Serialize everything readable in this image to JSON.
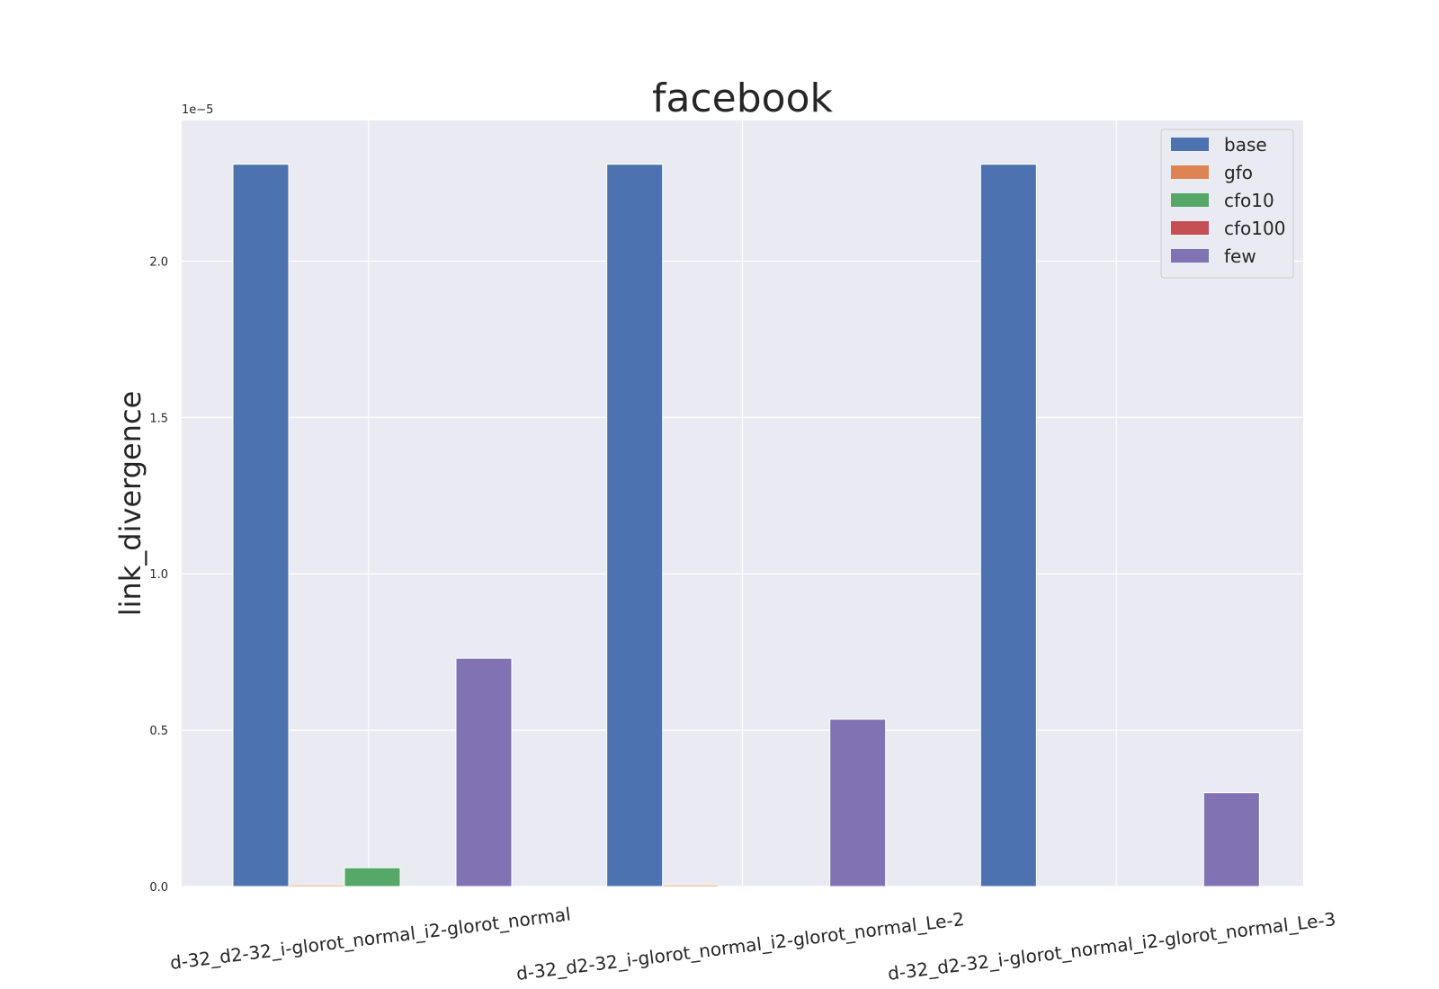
{
  "chart_data": {
    "type": "bar",
    "title": "facebook",
    "xlabel": "",
    "ylabel": "link_divergence",
    "y_offset_label": "1e−5",
    "ylim": [
      0,
      2.45
    ],
    "yticks": [
      "0.0",
      "0.5",
      "1.0",
      "1.5",
      "2.0"
    ],
    "ytick_values": [
      0,
      0.5,
      1.0,
      1.5,
      2.0
    ],
    "grid": true,
    "legend_position": "top-right",
    "categories": [
      "d-32_d2-32_i-glorot_normal_i2-glorot_normal",
      "d-32_d2-32_i-glorot_normal_i2-glorot_normal_Le-2",
      "d-32_d2-32_i-glorot_normal_i2-glorot_normal_Le-3"
    ],
    "series": [
      {
        "name": "base",
        "color": "#4c72b0",
        "values": [
          2.31,
          2.31,
          2.31
        ]
      },
      {
        "name": "gfo",
        "color": "#dd8452",
        "values": [
          0.005,
          0.005,
          0.0
        ]
      },
      {
        "name": "cfo10",
        "color": "#55a868",
        "values": [
          0.06,
          0.0,
          0.0
        ]
      },
      {
        "name": "cfo100",
        "color": "#c44e52",
        "values": [
          0.0,
          0.0,
          0.0
        ]
      },
      {
        "name": "few",
        "color": "#8172b3",
        "values": [
          0.73,
          0.535,
          0.3
        ]
      }
    ]
  }
}
